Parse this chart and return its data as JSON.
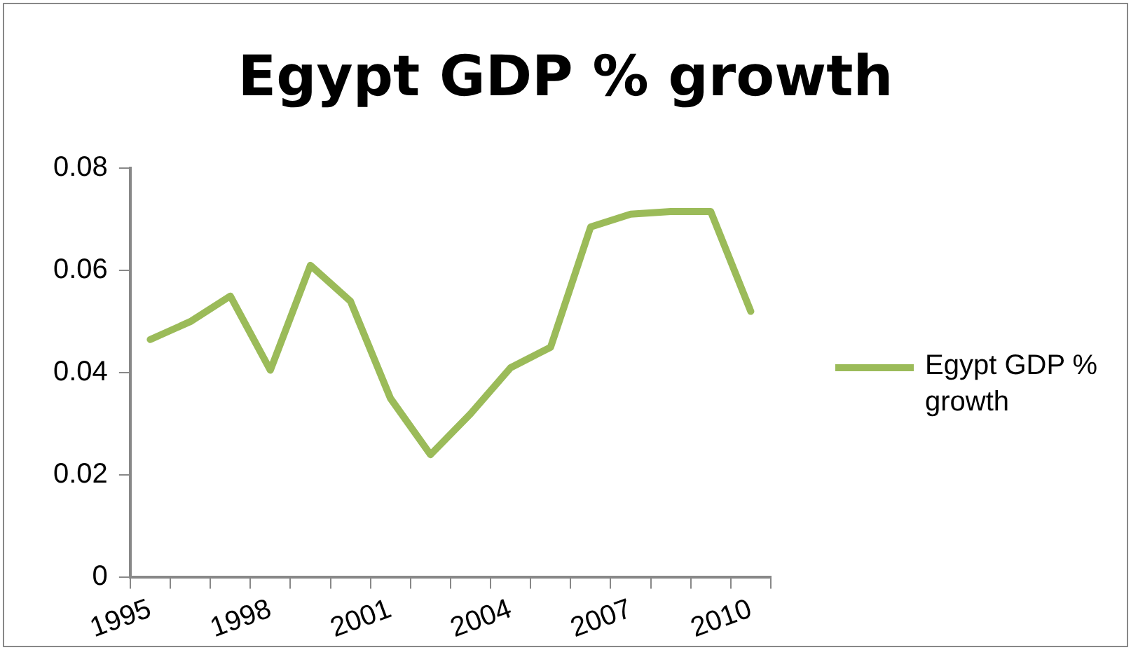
{
  "chart_data": {
    "type": "line",
    "title": "Egypt GDP % growth",
    "categories": [
      "1995",
      null,
      null,
      "1998",
      null,
      null,
      "2001",
      null,
      null,
      "2004",
      null,
      null,
      "2007",
      null,
      null,
      "2010"
    ],
    "series": [
      {
        "name": "Egypt GDP % growth",
        "color": "#9bbb59",
        "values": [
          0.0465,
          0.05,
          0.055,
          0.0405,
          0.061,
          0.054,
          0.035,
          0.024,
          0.032,
          0.041,
          0.045,
          0.0685,
          0.071,
          0.0715,
          0.0715,
          0.052
        ]
      }
    ],
    "ylim": [
      0,
      0.08
    ],
    "yticks": [
      0,
      0.02,
      0.04,
      0.06,
      0.08
    ],
    "grid": false,
    "legend": "right",
    "marker": "none",
    "line_style": "solid"
  }
}
